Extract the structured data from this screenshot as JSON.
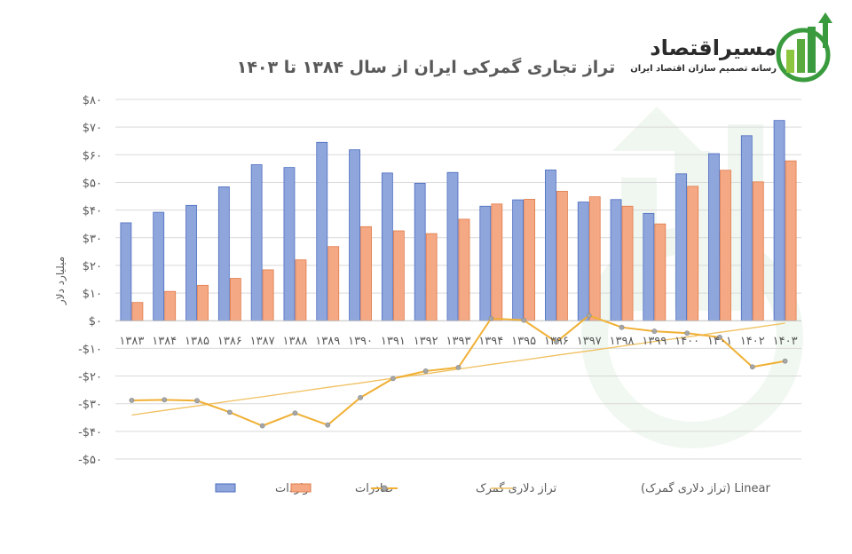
{
  "brand": {
    "name": "مسیراقتصاد",
    "tagline": "رسانه تصمیم سازان اقتصاد ایران",
    "colors": {
      "green": "#3a9b3e",
      "dark": "#2b2b2b"
    }
  },
  "colors": {
    "imports": "#8fa6dc",
    "imports_edge": "#4a6bbf",
    "exports": "#f4a883",
    "exports_edge": "#e07b4a",
    "balance": "#f0b035",
    "trend": "#f0c060",
    "grid": "#d9d9d9",
    "axis": "#bfbfbf"
  },
  "chart_data": {
    "type": "bar",
    "title": "تراز تجاری گمرکی ایران از سال ۱۳۸۴ تا ۱۴۰۳",
    "xlabel": "",
    "ylabel": "میلیارد دلار",
    "ylim": [
      -50,
      80
    ],
    "yticks": [
      -50,
      -40,
      -30,
      -20,
      -10,
      0,
      10,
      20,
      30,
      40,
      50,
      60,
      70,
      80
    ],
    "ytick_labels": [
      "-$۵۰",
      "-$۴۰",
      "-$۳۰",
      "-$۲۰",
      "-$۱۰",
      "$۰",
      "$۱۰",
      "$۲۰",
      "$۳۰",
      "$۴۰",
      "$۵۰",
      "$۶۰",
      "$۷۰",
      "$۸۰"
    ],
    "grid": true,
    "legend_position": "bottom",
    "categories": [
      "۱۳۸۳",
      "۱۳۸۴",
      "۱۳۸۵",
      "۱۳۸۶",
      "۱۳۸۷",
      "۱۳۸۸",
      "۱۳۸۹",
      "۱۳۹۰",
      "۱۳۹۱",
      "۱۳۹۲",
      "۱۳۹۳",
      "۱۳۹۴",
      "۱۳۹۵",
      "۱۳۹۶",
      "۱۳۹۷",
      "۱۳۹۸",
      "۱۳۹۹",
      "۱۴۰۰",
      "۱۴۰۱",
      "۱۴۰۲",
      "۱۴۰۳"
    ],
    "series": [
      {
        "name": "واردات",
        "kind": "bar",
        "values": [
          35.4,
          39.2,
          41.7,
          48.4,
          56.4,
          55.4,
          64.5,
          61.8,
          53.4,
          49.7,
          53.6,
          41.4,
          43.7,
          54.5,
          42.9,
          43.8,
          38.8,
          53.1,
          60.4,
          66.9,
          72.4
        ]
      },
      {
        "name": "صادرات",
        "kind": "bar",
        "values": [
          6.6,
          10.6,
          12.8,
          15.3,
          18.4,
          22.0,
          26.8,
          34.0,
          32.5,
          31.5,
          36.7,
          42.2,
          43.9,
          46.8,
          44.8,
          41.4,
          35.0,
          48.6,
          54.4,
          50.2,
          57.8
        ]
      },
      {
        "name": "تراز دلاری گمرک",
        "kind": "line",
        "values": [
          -28.8,
          -28.6,
          -28.9,
          -33.1,
          -38.0,
          -33.4,
          -37.7,
          -27.8,
          -20.9,
          -18.2,
          -16.9,
          0.8,
          0.2,
          -7.7,
          1.9,
          -2.4,
          -3.8,
          -4.5,
          -6.0,
          -16.7,
          -14.6
        ]
      },
      {
        "name": "Linear (تراز دلاری گمرک)",
        "kind": "trend",
        "values": [
          -34.1,
          -32.4,
          -30.8,
          -29.1,
          -27.5,
          -25.8,
          -24.1,
          -22.5,
          -20.8,
          -19.2,
          -17.5,
          -15.8,
          -14.2,
          -12.5,
          -10.9,
          -9.2,
          -7.5,
          -5.9,
          -4.2,
          -2.6,
          -0.9
        ]
      }
    ]
  }
}
